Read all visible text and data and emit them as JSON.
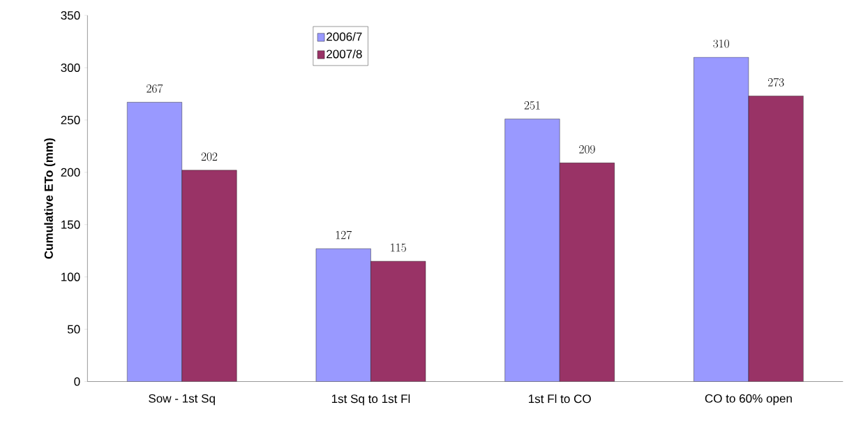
{
  "chart_data": {
    "type": "bar",
    "ylabel": "Cumulative ETo (mm)",
    "categories": [
      "Sow - 1st Sq",
      "1st Sq to 1st Fl",
      "1st Fl to CO",
      "CO to 60% open"
    ],
    "series": [
      {
        "name": "2006/7",
        "color": "#9999ff",
        "values": [
          267,
          127,
          251,
          310
        ]
      },
      {
        "name": "2007/8",
        "color": "#993366",
        "values": [
          202,
          115,
          209,
          273
        ]
      }
    ],
    "ylim": [
      0,
      350
    ],
    "yticks": [
      0,
      50,
      100,
      150,
      200,
      250,
      300,
      350
    ],
    "data_labels": true,
    "legend": "top",
    "grid": false
  }
}
